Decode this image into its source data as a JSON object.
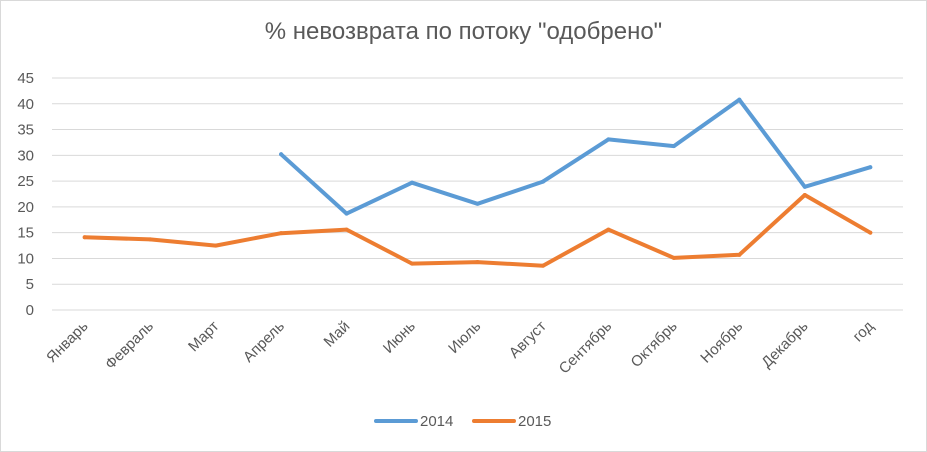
{
  "chart_data": {
    "type": "line",
    "title": "% невозврата по потоку \"одобрено\"",
    "xlabel": "",
    "ylabel": "",
    "ylim": [
      0,
      45
    ],
    "yticks": [
      0,
      5,
      10,
      15,
      20,
      25,
      30,
      35,
      40,
      45
    ],
    "grid": true,
    "legend": "bottom",
    "categories": [
      "Январь",
      "Февраль",
      "Март",
      "Апрель",
      "Май",
      "Июнь",
      "Июль",
      "Август",
      "Сентябрь",
      "Октябрь",
      "Ноябрь",
      "Декабрь",
      "год"
    ],
    "series": [
      {
        "name": "2014",
        "color": "#5b9bd5",
        "values": [
          null,
          null,
          null,
          30.2,
          18.7,
          24.7,
          20.6,
          24.9,
          33.1,
          31.8,
          40.8,
          23.9,
          27.7
        ]
      },
      {
        "name": "2015",
        "color": "#ed7d31",
        "values": [
          14.1,
          13.7,
          12.5,
          14.9,
          15.6,
          9.0,
          9.3,
          8.6,
          15.6,
          10.1,
          10.7,
          22.3,
          15.0
        ]
      }
    ]
  },
  "colors": {
    "grid": "#d9d9d9",
    "text": "#595959",
    "border": "#d9d9d9"
  }
}
